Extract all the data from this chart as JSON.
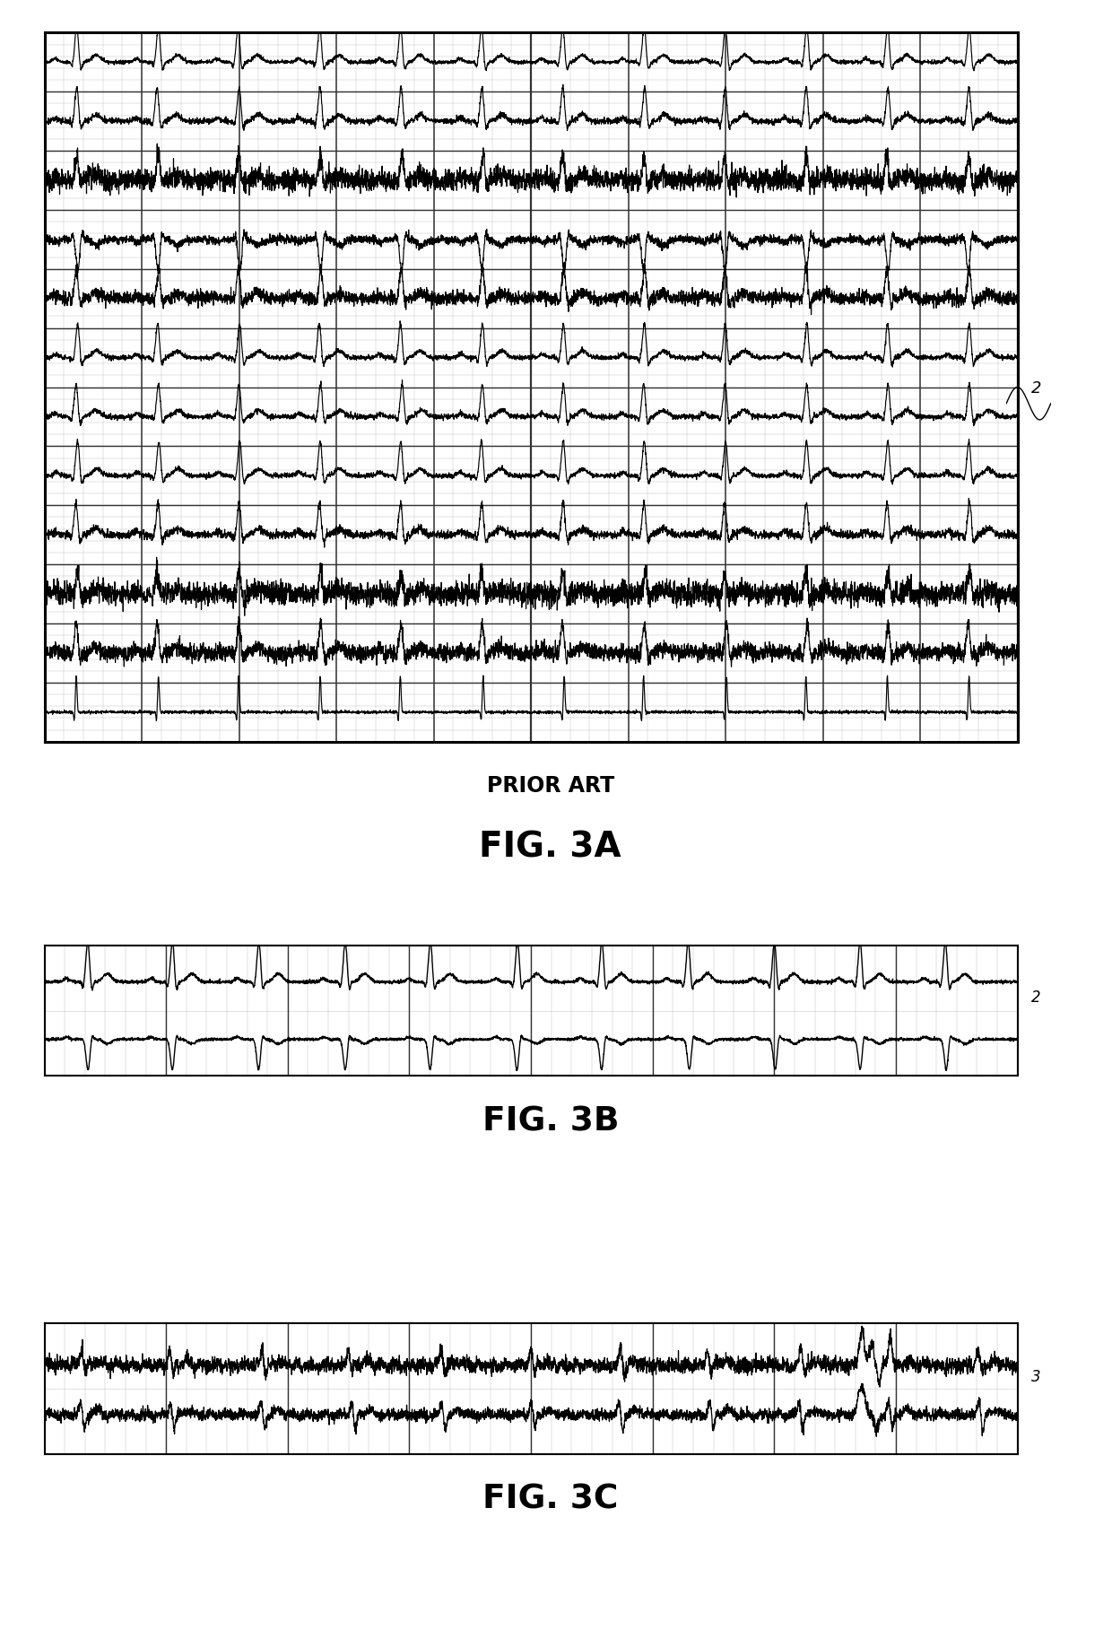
{
  "fig_width": 12.4,
  "fig_height": 18.17,
  "bg_color": "#ffffff",
  "line_color": "#000000",
  "grid_major_color": "#333333",
  "grid_minor_color": "#999999",
  "label_3a_prior": "PRIOR ART",
  "label_3a": "FIG. 3A",
  "label_3b": "FIG. 3B",
  "label_3c": "FIG. 3C",
  "ref_num_3a": "2",
  "ref_num_3b": "2",
  "ref_num_3c": "3",
  "num_leads_3a": 12,
  "fs": 500,
  "duration": 10.0,
  "heart_rate": 72
}
